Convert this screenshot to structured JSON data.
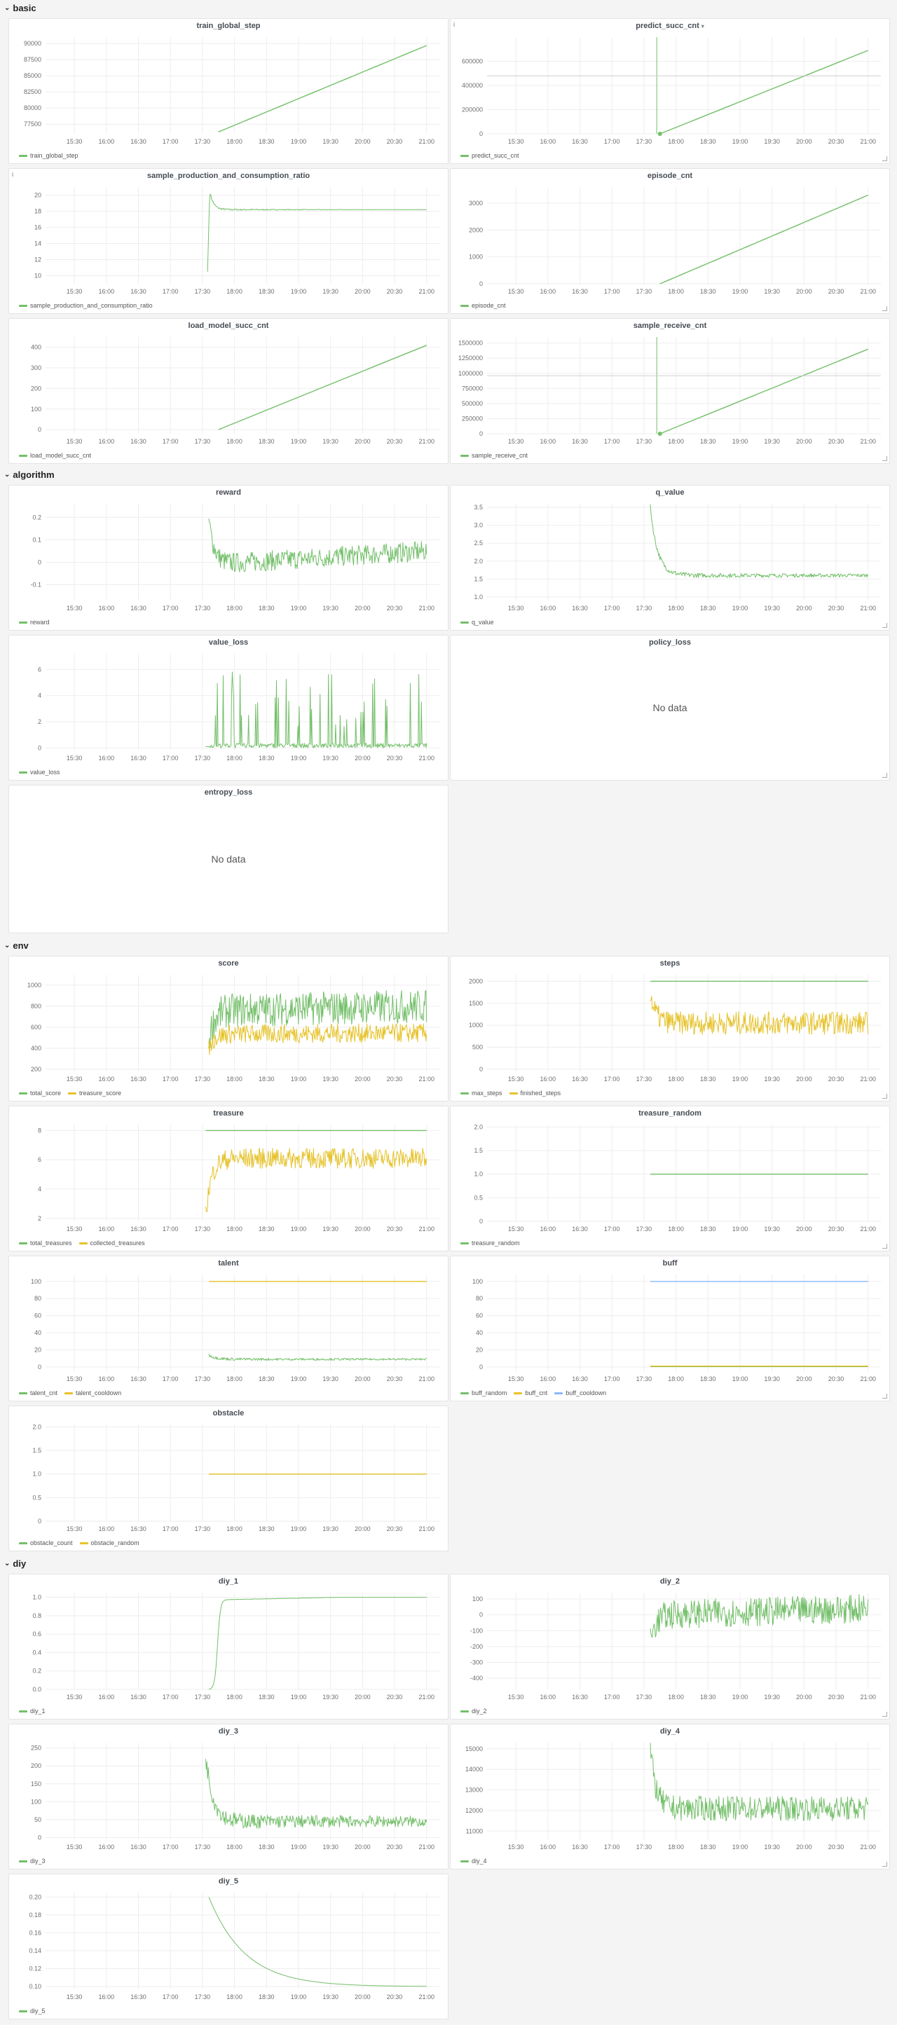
{
  "colors": {
    "green": "#73bf69",
    "yellow": "#e6c229",
    "blue": "#8ab8ff",
    "grid": "#eeeeee",
    "axis_text": "#6e6e6e"
  },
  "time_ticks": [
    "15:30",
    "16:00",
    "16:30",
    "17:00",
    "17:30",
    "18:00",
    "18:30",
    "19:00",
    "19:30",
    "20:00",
    "20:30",
    "21:00"
  ],
  "rows": [
    {
      "id": "basic",
      "label": "basic",
      "icon": "chevron-down-icon"
    },
    {
      "id": "algorithm",
      "label": "algorithm",
      "icon": "chevron-down-icon"
    },
    {
      "id": "env",
      "label": "env",
      "icon": "chevron-down-icon"
    },
    {
      "id": "diy",
      "label": "diy",
      "icon": "chevron-down-icon"
    }
  ],
  "panels": [
    {
      "id": "train_global_step",
      "title": "train_global_step",
      "ylim": [
        76000,
        91000
      ],
      "yticks": [
        "90000",
        "87500",
        "85000",
        "82500",
        "80000",
        "77500"
      ],
      "series": [
        {
          "name": "train_global_step",
          "color": "green",
          "kind": "linear",
          "t0": 17.75,
          "v0": 76300,
          "v1": 89700,
          "noise": 0
        }
      ]
    },
    {
      "id": "predict_succ_cnt",
      "title": "predict_succ_cnt",
      "has_menu": true,
      "info": true,
      "ylim": [
        0,
        800000
      ],
      "yticks": [
        "600000",
        "400000",
        "200000",
        "0"
      ],
      "series": [
        {
          "name": "predict_succ_cnt",
          "color": "green",
          "kind": "linear",
          "t0": 17.75,
          "v0": 0,
          "v1": 690000,
          "noise": 0,
          "spike": true
        }
      ]
    },
    {
      "id": "sample_production_and_consumption_ratio",
      "title": "sample_production_and_consumption_ratio",
      "info": true,
      "ylim": [
        9,
        21
      ],
      "yticks": [
        "20",
        "18",
        "16",
        "14",
        "12",
        "10"
      ],
      "series": [
        {
          "name": "sample_production_and_consumption_ratio",
          "color": "green",
          "kind": "settle",
          "t0": 17.58,
          "start": 10.5,
          "peak": 20.5,
          "level": 18.2,
          "noise": 0.15
        }
      ]
    },
    {
      "id": "episode_cnt",
      "title": "episode_cnt",
      "ylim": [
        0,
        3600
      ],
      "yticks": [
        "3000",
        "2000",
        "1000",
        "0"
      ],
      "series": [
        {
          "name": "episode_cnt",
          "color": "green",
          "kind": "linear",
          "t0": 17.75,
          "v0": 0,
          "v1": 3300,
          "noise": 0
        }
      ]
    },
    {
      "id": "load_model_succ_cnt",
      "title": "load_model_succ_cnt",
      "ylim": [
        -20,
        450
      ],
      "yticks": [
        "400",
        "300",
        "200",
        "100",
        "0"
      ],
      "series": [
        {
          "name": "load_model_succ_cnt",
          "color": "green",
          "kind": "linear",
          "t0": 17.75,
          "v0": 0,
          "v1": 410,
          "noise": 0
        }
      ]
    },
    {
      "id": "sample_receive_cnt",
      "title": "sample_receive_cnt",
      "ylim": [
        0,
        1600000
      ],
      "yticks": [
        "1500000",
        "1250000",
        "1000000",
        "750000",
        "500000",
        "250000",
        "0"
      ],
      "series": [
        {
          "name": "sample_receive_cnt",
          "color": "green",
          "kind": "linear",
          "t0": 17.75,
          "v0": 0,
          "v1": 1400000,
          "noise": 0,
          "spike": true
        }
      ]
    },
    {
      "id": "reward",
      "title": "reward",
      "ylim": [
        -0.17,
        0.26
      ],
      "yticks": [
        "0.2",
        "0.1",
        "0",
        "-0.1"
      ],
      "series": [
        {
          "name": "reward",
          "color": "green",
          "kind": "noisy",
          "t0": 17.6,
          "start": 0.22,
          "level": 0.02,
          "trend": 0.06,
          "noise": 0.045
        }
      ]
    },
    {
      "id": "q_value",
      "title": "q_value",
      "ylim": [
        0.9,
        3.6
      ],
      "yticks": [
        "3.5",
        "3.0",
        "2.5",
        "2.0",
        "1.5",
        "1.0"
      ],
      "series": [
        {
          "name": "q_value",
          "color": "green",
          "kind": "decaynoise",
          "t0": 17.6,
          "start": 3.5,
          "level": 1.6,
          "noise": 0.08
        }
      ]
    },
    {
      "id": "value_loss",
      "title": "value_loss",
      "ylim": [
        -0.2,
        7.2
      ],
      "yticks": [
        "6",
        "4",
        "2",
        "0"
      ],
      "series": [
        {
          "name": "value_loss",
          "color": "green",
          "kind": "spikes",
          "t0": 17.55,
          "noise": 0
        }
      ]
    },
    {
      "id": "policy_loss",
      "title": "policy_loss",
      "no_data": "No data",
      "series": []
    },
    {
      "id": "entropy_loss",
      "title": "entropy_loss",
      "no_data": "No data",
      "series": []
    },
    {
      "id": "score",
      "title": "score",
      "ylim": [
        180,
        1100
      ],
      "yticks": [
        "1000",
        "800",
        "600",
        "400",
        "200"
      ],
      "series": [
        {
          "name": "total_score",
          "color": "green",
          "kind": "noisy",
          "t0": 17.6,
          "start": 500,
          "level": 780,
          "trend": 40,
          "noise": 160
        },
        {
          "name": "treasure_score",
          "color": "yellow",
          "kind": "noisy",
          "t0": 17.6,
          "start": 400,
          "level": 540,
          "trend": 10,
          "noise": 90
        }
      ]
    },
    {
      "id": "steps",
      "title": "steps",
      "ylim": [
        -50,
        2150
      ],
      "yticks": [
        "2000",
        "1500",
        "1000",
        "500",
        "0"
      ],
      "series": [
        {
          "name": "max_steps",
          "color": "green",
          "kind": "flat",
          "t0": 17.6,
          "level": 2000
        },
        {
          "name": "finished_steps",
          "color": "yellow",
          "kind": "noisy",
          "t0": 17.6,
          "start": 1700,
          "level": 1050,
          "trend": 0,
          "noise": 260
        }
      ]
    },
    {
      "id": "treasure",
      "title": "treasure",
      "ylim": [
        1.8,
        8.4
      ],
      "yticks": [
        "8",
        "6",
        "4",
        "2"
      ],
      "series": [
        {
          "name": "total_treasures",
          "color": "green",
          "kind": "flat",
          "t0": 17.55,
          "level": 8
        },
        {
          "name": "collected_treasures",
          "color": "yellow",
          "kind": "noisy",
          "t0": 17.55,
          "start": 2.2,
          "level": 6.1,
          "trend": 0,
          "noise": 0.7
        }
      ]
    },
    {
      "id": "treasure_random",
      "title": "treasure_random",
      "ylim": [
        0,
        2.05
      ],
      "yticks": [
        "2.0",
        "1.5",
        "1.0",
        "0.5",
        "0"
      ],
      "series": [
        {
          "name": "treasure_random",
          "color": "green",
          "kind": "flat",
          "t0": 17.6,
          "level": 1.0
        }
      ]
    },
    {
      "id": "talent",
      "title": "talent",
      "ylim": [
        -5,
        108
      ],
      "yticks": [
        "100",
        "80",
        "60",
        "40",
        "20",
        "0"
      ],
      "series": [
        {
          "name": "talent_cnt",
          "color": "green",
          "kind": "decaynoise",
          "t0": 17.6,
          "start": 14,
          "level": 9,
          "noise": 1.8
        },
        {
          "name": "talent_cooldown",
          "color": "yellow",
          "kind": "flat",
          "t0": 17.6,
          "level": 100
        }
      ]
    },
    {
      "id": "buff",
      "title": "buff",
      "ylim": [
        -5,
        108
      ],
      "yticks": [
        "100",
        "80",
        "60",
        "40",
        "20",
        "0"
      ],
      "series": [
        {
          "name": "buff_random",
          "color": "green",
          "kind": "flat",
          "t0": 17.6,
          "level": 0.5
        },
        {
          "name": "buff_cnt",
          "color": "yellow",
          "kind": "flat",
          "t0": 17.6,
          "level": 1
        },
        {
          "name": "buff_cooldown",
          "color": "blue",
          "kind": "flat",
          "t0": 17.6,
          "level": 100
        }
      ]
    },
    {
      "id": "obstacle",
      "title": "obstacle",
      "ylim": [
        0,
        2.05
      ],
      "yticks": [
        "2.0",
        "1.5",
        "1.0",
        "0.5",
        "0"
      ],
      "series": [
        {
          "name": "obstacle_count",
          "color": "green",
          "kind": "flat",
          "t0": 17.6,
          "level": 1.0
        },
        {
          "name": "obstacle_random",
          "color": "yellow",
          "kind": "flat",
          "t0": 17.6,
          "level": 1.0
        }
      ]
    },
    {
      "id": "diy_1",
      "title": "diy_1",
      "ylim": [
        0,
        1.05
      ],
      "yticks": [
        "1.0",
        "0.8",
        "0.6",
        "0.4",
        "0.2",
        "0.0"
      ],
      "series": [
        {
          "name": "diy_1",
          "color": "green",
          "kind": "sigmoid",
          "t0": 17.6,
          "start": 0.0,
          "level": 0.97,
          "noise": 0.004
        }
      ]
    },
    {
      "id": "diy_2",
      "title": "diy_2",
      "ylim": [
        -470,
        140
      ],
      "yticks": [
        "100",
        "0",
        "-100",
        "-200",
        "-300",
        "-400"
      ],
      "series": [
        {
          "name": "diy_2",
          "color": "green",
          "kind": "noisy",
          "t0": 17.6,
          "start": -150,
          "level": 20,
          "trend": 40,
          "noise": 90
        }
      ]
    },
    {
      "id": "diy_3",
      "title": "diy_3",
      "ylim": [
        -5,
        265
      ],
      "yticks": [
        "250",
        "200",
        "150",
        "100",
        "50",
        "0"
      ],
      "series": [
        {
          "name": "diy_3",
          "color": "green",
          "kind": "decaynoise",
          "t0": 17.55,
          "start": 230,
          "level": 45,
          "noise": 25
        }
      ]
    },
    {
      "id": "diy_4",
      "title": "diy_4",
      "ylim": [
        10600,
        15300
      ],
      "yticks": [
        "15000",
        "14000",
        "13000",
        "12000",
        "11000"
      ],
      "series": [
        {
          "name": "diy_4",
          "color": "green",
          "kind": "noisy",
          "t0": 17.6,
          "start": 15000,
          "level": 12100,
          "trend": 0,
          "noise": 600
        }
      ]
    },
    {
      "id": "diy_5",
      "title": "diy_5",
      "ylim": [
        0.097,
        0.205
      ],
      "yticks": [
        "0.20",
        "0.18",
        "0.16",
        "0.14",
        "0.12",
        "0.10"
      ],
      "series": [
        {
          "name": "diy_5",
          "color": "green",
          "kind": "expdecay",
          "t0": 17.6,
          "start": 0.2,
          "level": 0.1,
          "noise": 0
        }
      ]
    }
  ]
}
